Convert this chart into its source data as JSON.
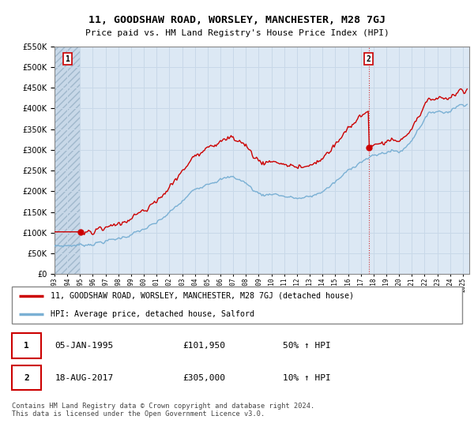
{
  "title": "11, GOODSHAW ROAD, WORSLEY, MANCHESTER, M28 7GJ",
  "subtitle": "Price paid vs. HM Land Registry's House Price Index (HPI)",
  "legend_line1": "11, GOODSHAW ROAD, WORSLEY, MANCHESTER, M28 7GJ (detached house)",
  "legend_line2": "HPI: Average price, detached house, Salford",
  "annotation1_date": "05-JAN-1995",
  "annotation1_price": "£101,950",
  "annotation1_hpi": "50% ↑ HPI",
  "annotation2_date": "18-AUG-2017",
  "annotation2_price": "£305,000",
  "annotation2_hpi": "10% ↑ HPI",
  "footer": "Contains HM Land Registry data © Crown copyright and database right 2024.\nThis data is licensed under the Open Government Licence v3.0.",
  "red_color": "#cc0000",
  "blue_color": "#7ab0d4",
  "grid_color": "#c8d8e8",
  "plot_bg": "#dce8f4",
  "hatch_bg": "#c8d8e8",
  "ylim": [
    0,
    550000
  ],
  "yticks": [
    0,
    50000,
    100000,
    150000,
    200000,
    250000,
    300000,
    350000,
    400000,
    450000,
    500000,
    550000
  ],
  "sale1_x": 1995.04,
  "sale1_y": 101950,
  "sale2_x": 2017.62,
  "sale2_y": 305000,
  "xlim_left": 1993.0,
  "xlim_right": 2025.5
}
